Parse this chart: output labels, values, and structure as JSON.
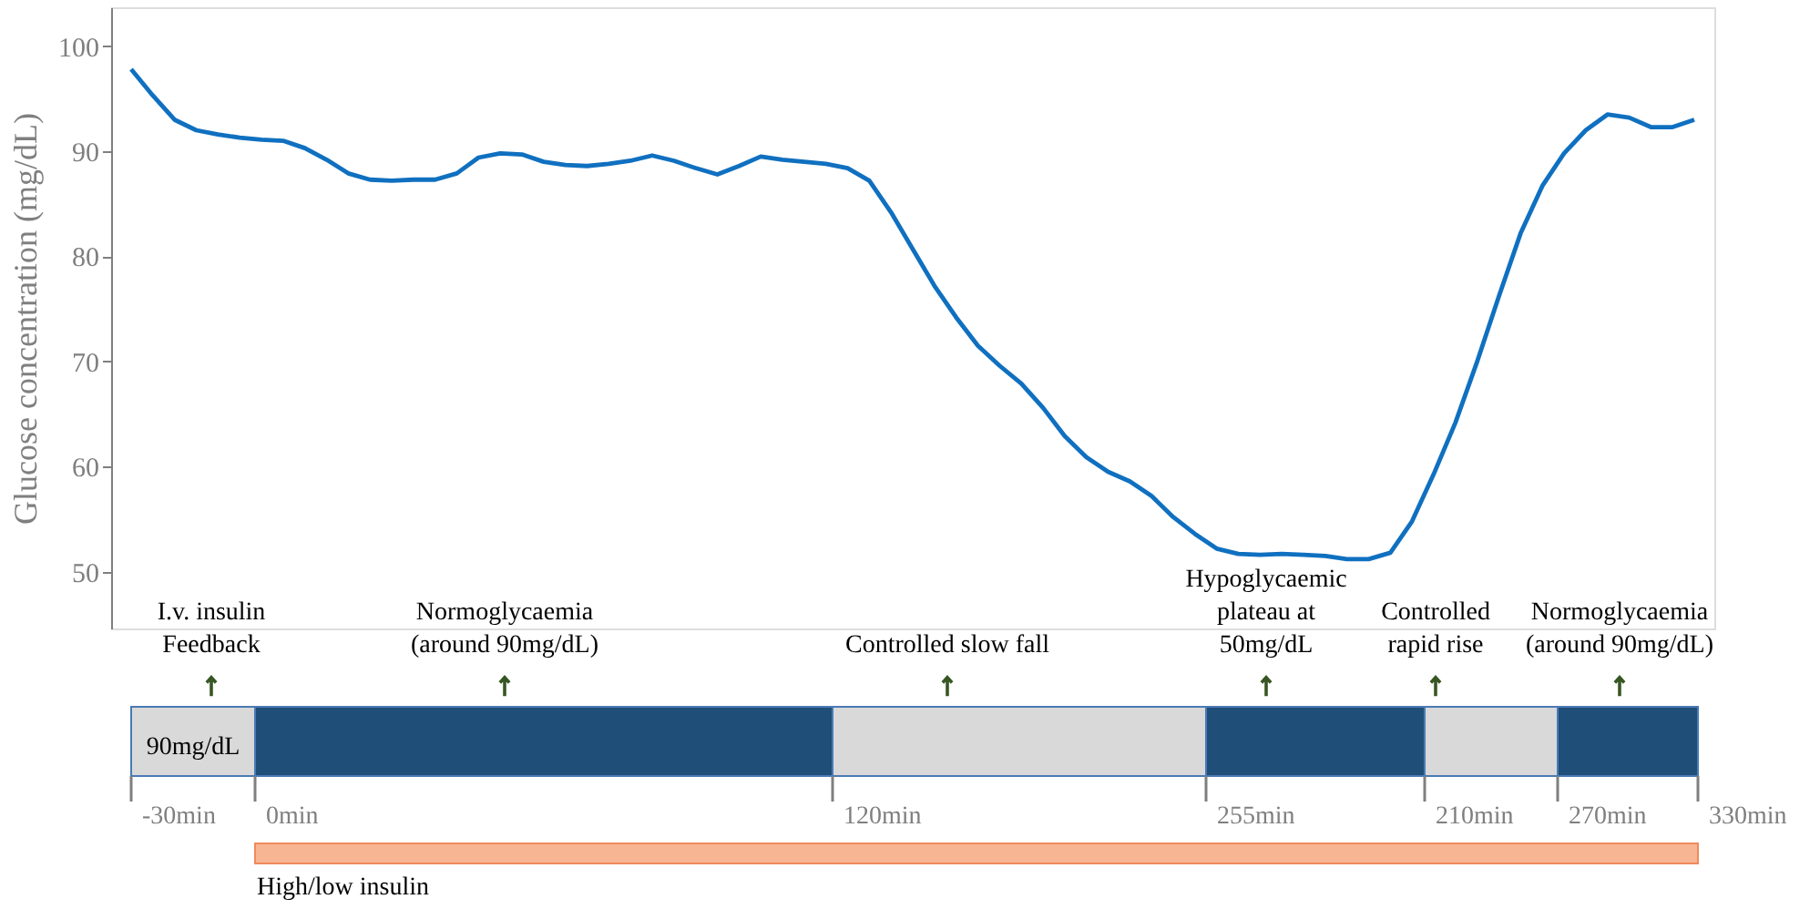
{
  "chart_data": {
    "type": "line",
    "ylabel": "Glucose concentration (mg/dL)",
    "categories": [
      null,
      null,
      null,
      null,
      null,
      null,
      null,
      null,
      null,
      null,
      null,
      null,
      null,
      null,
      null,
      null,
      null,
      null,
      null,
      null,
      null,
      null,
      null,
      null,
      null,
      null,
      null,
      null,
      null,
      null,
      null,
      null,
      null,
      null,
      null,
      null,
      null,
      null,
      null,
      null,
      null,
      null,
      null,
      null,
      null,
      null,
      null,
      null,
      null,
      null,
      null,
      null,
      null,
      null,
      null,
      null,
      null,
      null,
      null,
      null,
      null,
      null,
      null,
      null,
      null,
      null,
      null,
      null,
      null,
      null,
      null,
      null,
      null
    ],
    "series": [
      {
        "color": "#1070c0",
        "values": [
          97.8,
          95.3,
          93.0,
          92.0,
          91.6,
          91.3,
          91.1,
          91.0,
          90.3,
          89.2,
          87.9,
          87.3,
          87.2,
          87.3,
          87.3,
          87.9,
          89.4,
          89.8,
          89.7,
          89.0,
          88.7,
          88.6,
          88.8,
          89.1,
          89.6,
          89.1,
          88.4,
          87.8,
          88.6,
          89.5,
          89.2,
          89.0,
          88.8,
          88.4,
          87.2,
          84.2,
          80.7,
          77.2,
          74.2,
          71.5,
          69.6,
          67.9,
          65.6,
          62.9,
          60.9,
          59.5,
          58.6,
          57.2,
          55.2,
          53.6,
          52.2,
          51.7,
          51.6,
          51.7,
          51.6,
          51.5,
          51.2,
          51.2,
          51.8,
          54.8,
          59.3,
          64.2,
          70.0,
          76.2,
          82.2,
          86.7,
          89.8,
          92.0,
          93.5,
          93.2,
          92.3,
          92.3,
          93.0
        ]
      }
    ],
    "ylim": [
      44.6,
      103.7
    ],
    "yticks": [
      50,
      60,
      70,
      80,
      90,
      100
    ],
    "grid": false,
    "marker": "none",
    "line_style": "solid",
    "tick_labels": "y",
    "annotations": [
      "I.v. insulin\nFeedback",
      "Normoglycaemia\n(around 90mg/dL)",
      "Controlled slow fall",
      "Hypoglycaemic\nplateau at\n50mg/dL",
      "Controlled\nrapid rise",
      "Normoglycaemia\n(around 90mg/dL)",
      "90mg/dL",
      "-30min",
      "0min",
      "120min",
      "255min",
      "210min",
      "270min",
      "330min",
      "High/low insulin"
    ]
  }
}
